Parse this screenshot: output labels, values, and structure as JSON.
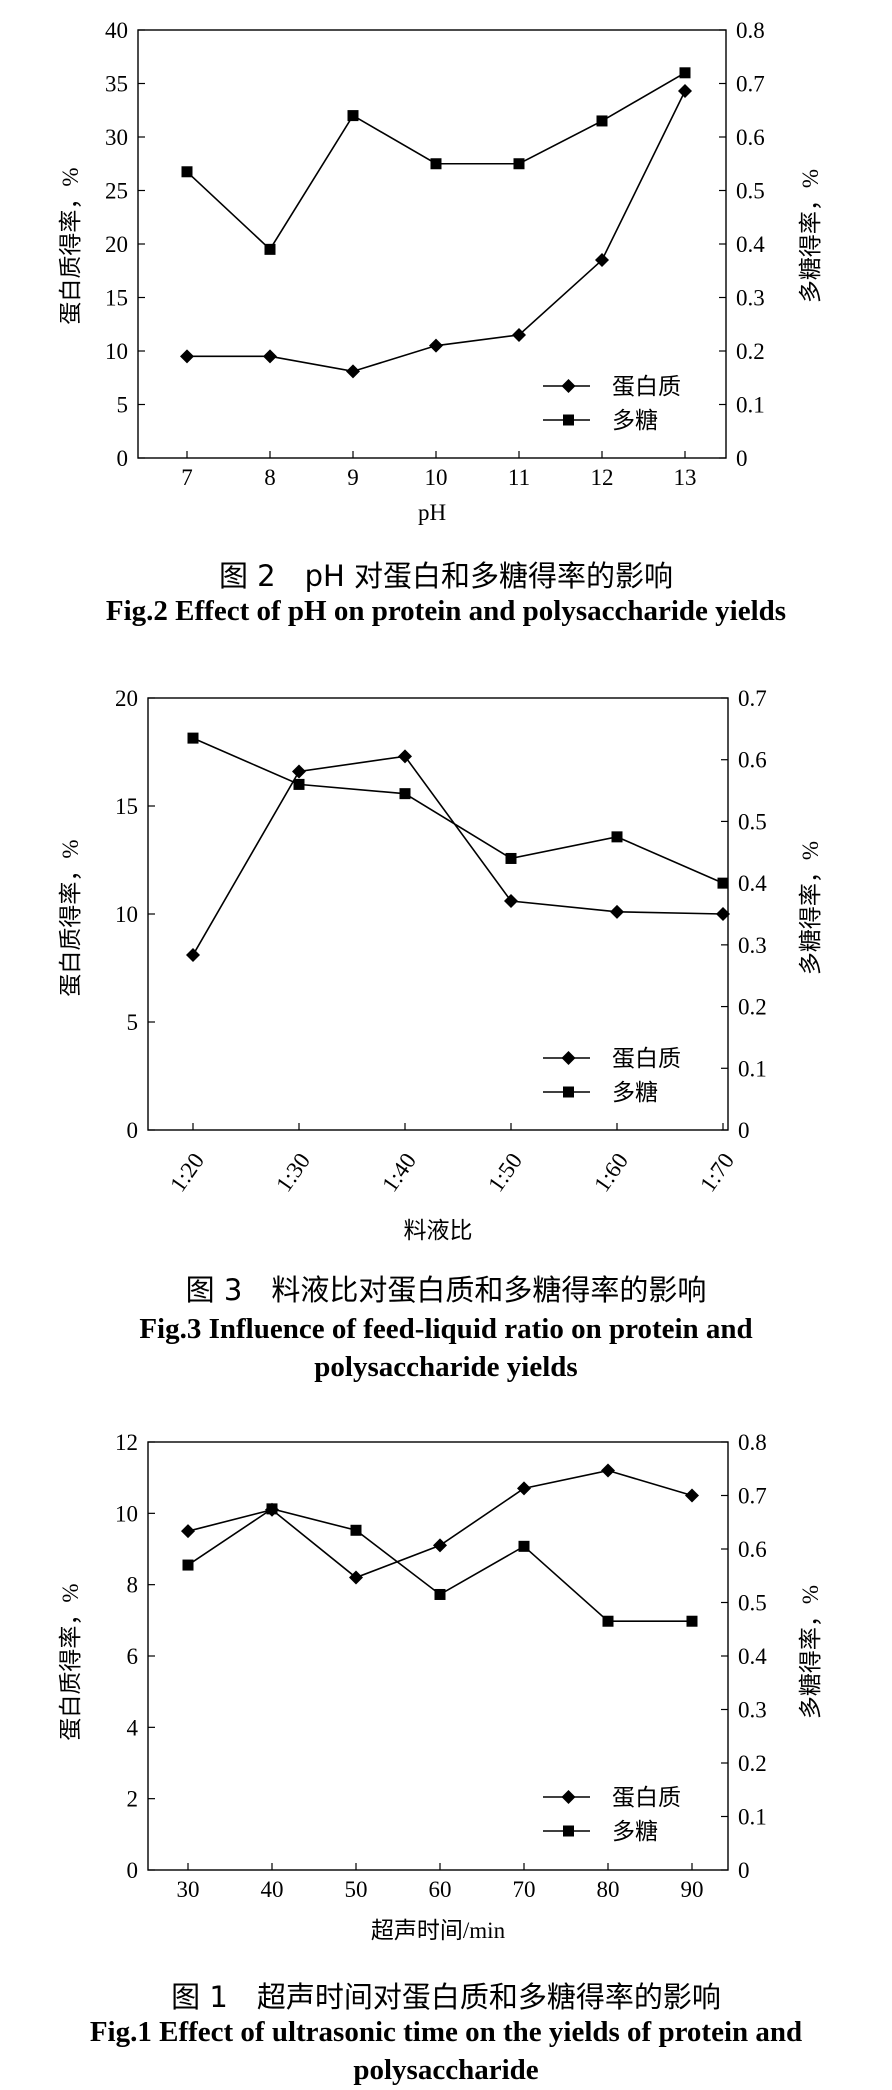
{
  "chart_data": [
    {
      "type": "line",
      "x": [
        "7",
        "8",
        "9",
        "10",
        "11",
        "12",
        "13"
      ],
      "xlabel": "pH",
      "ylabel_left": "蛋白质得率，%",
      "ylabel_right": "多糖得率，%",
      "ylim_left": [
        0,
        40
      ],
      "yticks_left": [
        0,
        5,
        10,
        15,
        20,
        25,
        30,
        35,
        40
      ],
      "ylim_right": [
        0,
        0.8
      ],
      "yticks_right": [
        "0",
        "0.1",
        "0.2",
        "0.3",
        "0.4",
        "0.5",
        "0.6",
        "0.7",
        "0.8"
      ],
      "series": [
        {
          "name": "蛋白质",
          "axis": "left",
          "marker": "diamond",
          "values": [
            9.5,
            9.5,
            8.1,
            10.5,
            11.5,
            18.5,
            34.3
          ]
        },
        {
          "name": "多糖",
          "axis": "right",
          "marker": "square",
          "values": [
            0.535,
            0.39,
            0.64,
            0.55,
            0.55,
            0.63,
            0.72
          ]
        }
      ],
      "legend": "bottom-right",
      "caption_cn": "图 2　pH 对蛋白和多糖得率的影响",
      "caption_en": [
        "Fig.2 Effect of pH on protein and polysaccharide yields"
      ]
    },
    {
      "type": "line",
      "x": [
        "1:20",
        "1:30",
        "1:40",
        "1:50",
        "1:60",
        "1:70"
      ],
      "xlabel": "料液比",
      "ylabel_left": "蛋白质得率，%",
      "ylabel_right": "多糖得率，%",
      "ylim_left": [
        0,
        20
      ],
      "yticks_left": [
        0,
        5,
        10,
        15,
        20
      ],
      "ylim_right": [
        0,
        0.7
      ],
      "yticks_right": [
        "0",
        "0.1",
        "0.2",
        "0.3",
        "0.4",
        "0.5",
        "0.6",
        "0.7"
      ],
      "series": [
        {
          "name": "蛋白质",
          "axis": "left",
          "marker": "diamond",
          "values": [
            8.1,
            16.6,
            17.3,
            10.6,
            10.1,
            10.0
          ]
        },
        {
          "name": "多糖",
          "axis": "right",
          "marker": "square",
          "values": [
            0.635,
            0.56,
            0.545,
            0.44,
            0.475,
            0.4
          ]
        }
      ],
      "legend": "bottom-right",
      "caption_cn": "图 3　料液比对蛋白质和多糖得率的影响",
      "caption_en": [
        "Fig.3 Influence of feed-liquid ratio on protein and",
        "polysaccharide yields"
      ]
    },
    {
      "type": "line",
      "x": [
        "30",
        "40",
        "50",
        "60",
        "70",
        "80",
        "90"
      ],
      "xlabel": "超声时间/min",
      "ylabel_left": "蛋白质得率，%",
      "ylabel_right": "多糖得率，%",
      "ylim_left": [
        0,
        12
      ],
      "yticks_left": [
        0,
        2,
        4,
        6,
        8,
        10,
        12
      ],
      "ylim_right": [
        0,
        0.8
      ],
      "yticks_right": [
        "0",
        "0.1",
        "0.2",
        "0.3",
        "0.4",
        "0.5",
        "0.6",
        "0.7",
        "0.8"
      ],
      "series": [
        {
          "name": "蛋白质",
          "axis": "left",
          "marker": "diamond",
          "values": [
            9.5,
            10.1,
            8.2,
            9.1,
            10.7,
            11.2,
            10.5
          ]
        },
        {
          "name": "多糖",
          "axis": "right",
          "marker": "square",
          "values": [
            0.57,
            0.675,
            0.635,
            0.515,
            0.605,
            0.465,
            0.465
          ]
        }
      ],
      "legend": "bottom-right",
      "caption_cn": "图 1　超声时间对蛋白质和多糖得率的影响",
      "caption_en": [
        "Fig.1 Effect of ultrasonic time on the yields of protein and",
        "polysaccharide"
      ]
    }
  ]
}
